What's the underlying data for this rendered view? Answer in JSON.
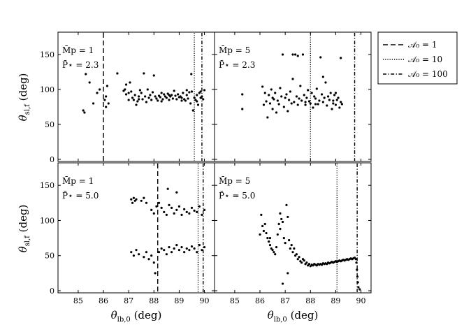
{
  "chart_data": {
    "type": "scatter",
    "layout": "2x2 grid of panels with shared axes",
    "xlabel_base": "θ",
    "xlabel_sub": "lb,0",
    "xlabel_unit": " (deg)",
    "ylabel_base": "θ",
    "ylabel_sub": "sl,f",
    "ylabel_unit": " (deg)",
    "xlim": [
      84.2,
      90.4
    ],
    "ylim": [
      -3,
      182
    ],
    "xticks": [
      "85",
      "86",
      "87",
      "88",
      "89",
      "90"
    ],
    "yticks": [
      "0",
      "50",
      "100",
      "150"
    ],
    "legend": {
      "position": "outside right",
      "entries": [
        {
          "label": "𝒜₀ = 1",
          "style": "dashed"
        },
        {
          "label": "𝒜₀ = 10",
          "style": "dotted"
        },
        {
          "label": "𝒜₀ = 100",
          "style": "dashdot"
        }
      ]
    },
    "panels": [
      {
        "annot_line1": "M̄p = 1",
        "annot_line2": "P̄⋆ = 2.3",
        "vlines": [
          86.0,
          89.6,
          89.9
        ],
        "points": [
          [
            85.2,
            70
          ],
          [
            85.25,
            67
          ],
          [
            85.3,
            122
          ],
          [
            85.45,
            110
          ],
          [
            85.6,
            80
          ],
          [
            85.75,
            95
          ],
          [
            85.85,
            100
          ],
          [
            86.05,
            85
          ],
          [
            86.1,
            90
          ],
          [
            86.15,
            105
          ],
          [
            86.1,
            75
          ],
          [
            86.2,
            80
          ],
          [
            86.55,
            123
          ],
          [
            86.8,
            98
          ],
          [
            86.85,
            100
          ],
          [
            86.9,
            93
          ],
          [
            87.0,
            85
          ],
          [
            87.05,
            110
          ],
          [
            87.1,
            97
          ],
          [
            87.15,
            88
          ],
          [
            87.2,
            85
          ],
          [
            87.25,
            92
          ],
          [
            87.3,
            78
          ],
          [
            87.35,
            83
          ],
          [
            87.4,
            90
          ],
          [
            87.45,
            99
          ],
          [
            87.5,
            95
          ],
          [
            87.55,
            86
          ],
          [
            87.6,
            123
          ],
          [
            87.65,
            90
          ],
          [
            87.7,
            82
          ],
          [
            87.75,
            100
          ],
          [
            87.8,
            88
          ],
          [
            87.85,
            92
          ],
          [
            87.9,
            85
          ],
          [
            87.95,
            96
          ],
          [
            88.0,
            120
          ],
          [
            88.05,
            90
          ],
          [
            88.1,
            87
          ],
          [
            88.15,
            84
          ],
          [
            88.2,
            91
          ],
          [
            88.25,
            89
          ],
          [
            88.3,
            95
          ],
          [
            88.35,
            86
          ],
          [
            88.4,
            93
          ],
          [
            88.45,
            90
          ],
          [
            88.5,
            88
          ],
          [
            88.55,
            94
          ],
          [
            88.6,
            85
          ],
          [
            88.65,
            90
          ],
          [
            88.7,
            92
          ],
          [
            88.75,
            87
          ],
          [
            88.8,
            98
          ],
          [
            88.85,
            91
          ],
          [
            88.9,
            86
          ],
          [
            88.95,
            93
          ],
          [
            89.0,
            89
          ],
          [
            89.05,
            90
          ],
          [
            89.1,
            88
          ],
          [
            89.15,
            95
          ],
          [
            89.2,
            86
          ],
          [
            89.25,
            84
          ],
          [
            89.3,
            92
          ],
          [
            89.35,
            87
          ],
          [
            89.4,
            96
          ],
          [
            89.45,
            80
          ],
          [
            89.5,
            97
          ],
          [
            89.55,
            70
          ],
          [
            89.6,
            88
          ],
          [
            89.65,
            85
          ],
          [
            89.7,
            92
          ],
          [
            89.75,
            78
          ],
          [
            89.8,
            95
          ],
          [
            89.85,
            88
          ],
          [
            89.9,
            90
          ],
          [
            89.95,
            86
          ],
          [
            90.0,
            99
          ],
          [
            89.48,
            122
          ],
          [
            86.9,
            107
          ],
          [
            87.0,
            95
          ],
          [
            87.4,
            86
          ],
          [
            88.3,
            83
          ],
          [
            88.6,
            92
          ],
          [
            89.1,
            84
          ],
          [
            89.3,
            99
          ],
          [
            89.7,
            83
          ],
          [
            89.85,
            97
          ]
        ]
      },
      {
        "annot_line1": "M̄p = 5",
        "annot_line2": "P̄⋆ = 2.3",
        "vlines": [
          88.0,
          89.75
        ],
        "points": [
          [
            85.3,
            93
          ],
          [
            85.3,
            72
          ],
          [
            86.1,
            104
          ],
          [
            86.15,
            78
          ],
          [
            86.2,
            95
          ],
          [
            86.25,
            83
          ],
          [
            86.3,
            60
          ],
          [
            86.35,
            92
          ],
          [
            86.4,
            80
          ],
          [
            86.45,
            100
          ],
          [
            86.5,
            72
          ],
          [
            86.55,
            86
          ],
          [
            86.6,
            95
          ],
          [
            86.65,
            67
          ],
          [
            86.7,
            84
          ],
          [
            86.75,
            79
          ],
          [
            86.8,
            102
          ],
          [
            86.85,
            90
          ],
          [
            86.9,
            150
          ],
          [
            86.95,
            75
          ],
          [
            87.0,
            88
          ],
          [
            87.05,
            93
          ],
          [
            87.1,
            69
          ],
          [
            87.15,
            85
          ],
          [
            87.2,
            97
          ],
          [
            87.25,
            80
          ],
          [
            87.3,
            115
          ],
          [
            87.35,
            82
          ],
          [
            87.4,
            150
          ],
          [
            87.45,
            90
          ],
          [
            87.5,
            78
          ],
          [
            87.55,
            87
          ],
          [
            87.6,
            105
          ],
          [
            87.65,
            84
          ],
          [
            87.7,
            150
          ],
          [
            87.75,
            92
          ],
          [
            87.8,
            78
          ],
          [
            87.85,
            88
          ],
          [
            87.9,
            99
          ],
          [
            87.95,
            83
          ],
          [
            88.0,
            80
          ],
          [
            88.05,
            95
          ],
          [
            88.1,
            74
          ],
          [
            88.15,
            90
          ],
          [
            88.2,
            87
          ],
          [
            88.25,
            101
          ],
          [
            88.3,
            79
          ],
          [
            88.35,
            84
          ],
          [
            88.4,
            146
          ],
          [
            88.45,
            93
          ],
          [
            88.5,
            82
          ],
          [
            88.55,
            88
          ],
          [
            88.6,
            110
          ],
          [
            88.65,
            77
          ],
          [
            88.7,
            90
          ],
          [
            88.75,
            85
          ],
          [
            88.8,
            95
          ],
          [
            88.85,
            72
          ],
          [
            88.9,
            80
          ],
          [
            88.95,
            92
          ],
          [
            89.0,
            78
          ],
          [
            89.05,
            85
          ],
          [
            89.1,
            88
          ],
          [
            89.15,
            74
          ],
          [
            89.2,
            82
          ],
          [
            89.2,
            145
          ],
          [
            89.25,
            79
          ],
          [
            87.3,
            150
          ],
          [
            87.5,
            148
          ],
          [
            88.5,
            118
          ],
          [
            89.0,
            95
          ],
          [
            86.5,
            88
          ],
          [
            87.8,
            82
          ],
          [
            88.2,
            79
          ],
          [
            88.9,
            84
          ]
        ]
      },
      {
        "annot_line1": "M̄p = 1",
        "annot_line2": "P̄⋆ = 5.0",
        "vlines": [
          88.15,
          89.75,
          89.95
        ],
        "points": [
          [
            87.1,
            130
          ],
          [
            87.15,
            125
          ],
          [
            87.2,
            132
          ],
          [
            87.25,
            128
          ],
          [
            87.3,
            130
          ],
          [
            87.5,
            128
          ],
          [
            87.6,
            132
          ],
          [
            87.7,
            125
          ],
          [
            87.9,
            115
          ],
          [
            88.0,
            110
          ],
          [
            88.1,
            120
          ],
          [
            88.2,
            125
          ],
          [
            88.3,
            118
          ],
          [
            88.4,
            112
          ],
          [
            88.5,
            108
          ],
          [
            88.6,
            122
          ],
          [
            88.7,
            118
          ],
          [
            88.8,
            110
          ],
          [
            88.9,
            115
          ],
          [
            89.0,
            120
          ],
          [
            89.1,
            108
          ],
          [
            89.2,
            116
          ],
          [
            89.3,
            112
          ],
          [
            89.4,
            110
          ],
          [
            89.5,
            118
          ],
          [
            89.6,
            114
          ],
          [
            89.7,
            112
          ],
          [
            89.8,
            120
          ],
          [
            89.9,
            108
          ],
          [
            90.0,
            115
          ],
          [
            88.55,
            145
          ],
          [
            88.9,
            140
          ],
          [
            87.1,
            55
          ],
          [
            87.2,
            50
          ],
          [
            87.3,
            58
          ],
          [
            87.4,
            52
          ],
          [
            87.6,
            48
          ],
          [
            87.7,
            55
          ],
          [
            87.8,
            45
          ],
          [
            87.9,
            50
          ],
          [
            88.0,
            40
          ],
          [
            88.05,
            25
          ],
          [
            88.2,
            55
          ],
          [
            88.3,
            60
          ],
          [
            88.4,
            58
          ],
          [
            88.5,
            52
          ],
          [
            88.6,
            62
          ],
          [
            88.7,
            55
          ],
          [
            88.8,
            60
          ],
          [
            88.9,
            65
          ],
          [
            89.0,
            58
          ],
          [
            89.1,
            62
          ],
          [
            89.2,
            55
          ],
          [
            89.3,
            60
          ],
          [
            89.4,
            58
          ],
          [
            89.5,
            63
          ],
          [
            89.6,
            60
          ],
          [
            89.7,
            55
          ],
          [
            89.8,
            65
          ],
          [
            89.9,
            58
          ],
          [
            90.0,
            62
          ]
        ]
      },
      {
        "annot_line1": "M̄p = 5",
        "annot_line2": "P̄⋆ = 5.0",
        "vlines": [
          89.05,
          89.85
        ],
        "points": [
          [
            86.0,
            80
          ],
          [
            86.05,
            108
          ],
          [
            86.1,
            92
          ],
          [
            86.15,
            85
          ],
          [
            86.2,
            95
          ],
          [
            86.25,
            82
          ],
          [
            86.3,
            75
          ],
          [
            86.35,
            70
          ],
          [
            86.4,
            65
          ],
          [
            86.45,
            60
          ],
          [
            86.5,
            58
          ],
          [
            86.55,
            55
          ],
          [
            86.6,
            52
          ],
          [
            86.65,
            62
          ],
          [
            86.7,
            80
          ],
          [
            86.75,
            95
          ],
          [
            86.8,
            110
          ],
          [
            86.85,
            102
          ],
          [
            86.9,
            98
          ],
          [
            86.95,
            75
          ],
          [
            87.0,
            68
          ],
          [
            87.05,
            122
          ],
          [
            87.1,
            105
          ],
          [
            87.15,
            72
          ],
          [
            87.2,
            60
          ],
          [
            87.25,
            65
          ],
          [
            87.3,
            55
          ],
          [
            87.35,
            60
          ],
          [
            87.4,
            50
          ],
          [
            87.45,
            52
          ],
          [
            87.5,
            45
          ],
          [
            87.55,
            48
          ],
          [
            87.6,
            42
          ],
          [
            87.65,
            40
          ],
          [
            87.7,
            45
          ],
          [
            87.75,
            43
          ],
          [
            87.8,
            38
          ],
          [
            87.85,
            40
          ],
          [
            87.9,
            36
          ],
          [
            87.95,
            38
          ],
          [
            88.0,
            35
          ],
          [
            88.05,
            37
          ],
          [
            88.1,
            36
          ],
          [
            88.15,
            38
          ],
          [
            88.2,
            37
          ],
          [
            88.25,
            36
          ],
          [
            88.3,
            38
          ],
          [
            88.35,
            37
          ],
          [
            88.4,
            38
          ],
          [
            88.45,
            37
          ],
          [
            88.5,
            39
          ],
          [
            88.55,
            38
          ],
          [
            88.6,
            39
          ],
          [
            88.65,
            38
          ],
          [
            88.7,
            40
          ],
          [
            88.75,
            39
          ],
          [
            88.8,
            40
          ],
          [
            88.85,
            41
          ],
          [
            88.9,
            40
          ],
          [
            88.95,
            41
          ],
          [
            89.0,
            42
          ],
          [
            89.05,
            41
          ],
          [
            89.1,
            42
          ],
          [
            89.15,
            43
          ],
          [
            89.2,
            42
          ],
          [
            89.25,
            43
          ],
          [
            89.3,
            44
          ],
          [
            89.35,
            43
          ],
          [
            89.4,
            44
          ],
          [
            89.45,
            45
          ],
          [
            89.5,
            44
          ],
          [
            89.55,
            45
          ],
          [
            89.6,
            46
          ],
          [
            89.65,
            45
          ],
          [
            89.7,
            46
          ],
          [
            89.75,
            47
          ],
          [
            89.8,
            45
          ],
          [
            89.82,
            40
          ],
          [
            89.84,
            30
          ],
          [
            89.86,
            20
          ],
          [
            89.88,
            12
          ],
          [
            89.9,
            5
          ],
          [
            89.95,
            2
          ],
          [
            86.9,
            10
          ],
          [
            87.1,
            25
          ],
          [
            86.4,
            75
          ],
          [
            86.8,
            88
          ]
        ]
      }
    ]
  }
}
